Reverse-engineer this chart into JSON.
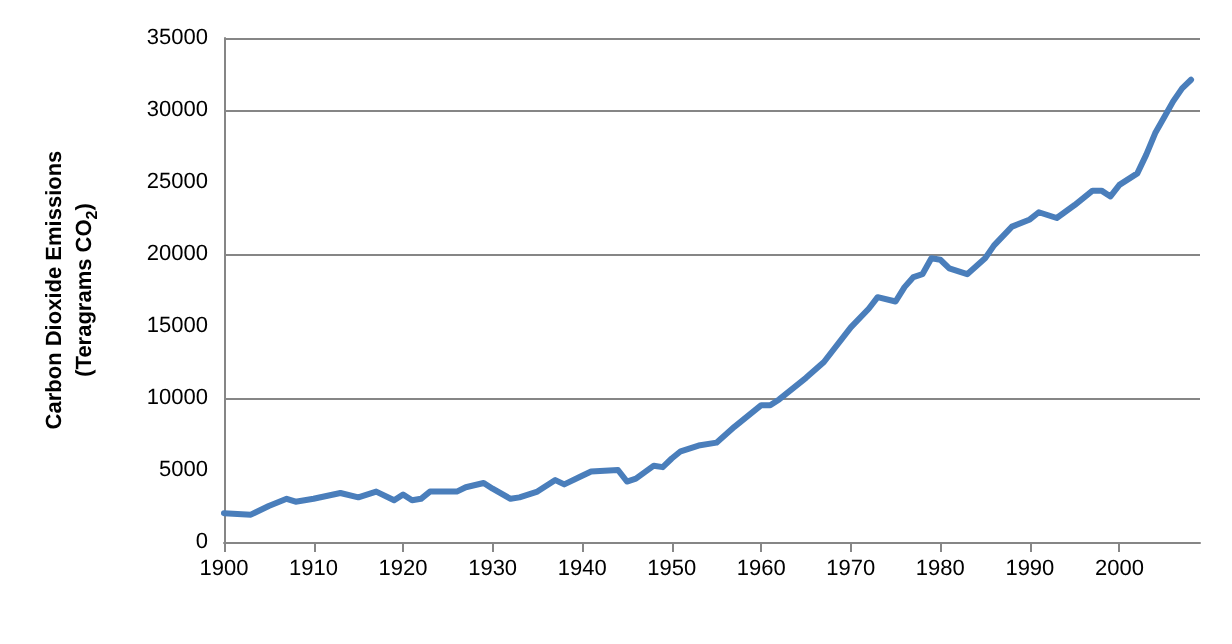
{
  "chart_data": {
    "type": "line",
    "ylabel": "Carbon Dioxide Emissions\n(Teragrams CO$_{2}$)",
    "x": [
      1900,
      1903,
      1905,
      1907,
      1908,
      1910,
      1913,
      1915,
      1917,
      1919,
      1920,
      1921,
      1922,
      1923,
      1926,
      1927,
      1929,
      1930,
      1932,
      1933,
      1935,
      1937,
      1938,
      1940,
      1941,
      1944,
      1945,
      1946,
      1948,
      1949,
      1950,
      1951,
      1953,
      1955,
      1957,
      1960,
      1961,
      1962,
      1965,
      1967,
      1970,
      1972,
      1973,
      1975,
      1976,
      1977,
      1978,
      1979,
      1980,
      1981,
      1983,
      1985,
      1986,
      1988,
      1990,
      1991,
      1993,
      1995,
      1997,
      1998,
      1999,
      2000,
      2002,
      2003,
      2004,
      2005,
      2006,
      2007,
      2008
    ],
    "series": [
      {
        "color": "#4a7ebb",
        "values": [
          2000,
          1900,
          2500,
          3000,
          2800,
          3000,
          3400,
          3100,
          3500,
          2900,
          3300,
          2900,
          3000,
          3500,
          3500,
          3800,
          4100,
          3700,
          3000,
          3100,
          3500,
          4300,
          4000,
          4600,
          4900,
          5000,
          4200,
          4400,
          5300,
          5200,
          5800,
          6300,
          6700,
          6900,
          8000,
          9500,
          9500,
          9900,
          11400,
          12500,
          14900,
          16200,
          17000,
          16700,
          17700,
          18400,
          18600,
          19700,
          19600,
          19000,
          18600,
          19700,
          20600,
          21900,
          22400,
          22900,
          22500,
          23400,
          24400,
          24400,
          24000,
          24800,
          25600,
          26900,
          28400,
          29500,
          30600,
          31500,
          32100
        ]
      }
    ],
    "xlim": [
      1900,
      2009
    ],
    "xticks": [
      1900,
      1910,
      1920,
      1930,
      1940,
      1950,
      1960,
      1970,
      1980,
      1990,
      2000
    ],
    "ylim": [
      0,
      35000
    ],
    "yticks": [
      0,
      5000,
      10000,
      15000,
      20000,
      25000,
      30000,
      35000
    ],
    "grid": "y",
    "marker": "none",
    "line_style": "solid"
  }
}
